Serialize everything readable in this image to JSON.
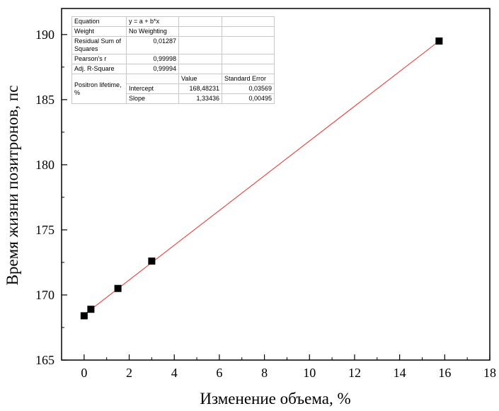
{
  "chart_data": {
    "type": "scatter",
    "xlabel": "Изменение объема, %",
    "ylabel": "Время жизни позитронов, пс",
    "xlim": [
      -1,
      18
    ],
    "ylim": [
      165,
      192
    ],
    "x_ticks": [
      "0",
      "2",
      "4",
      "6",
      "8",
      "10",
      "12",
      "14",
      "16",
      "18"
    ],
    "y_ticks": [
      "165",
      "170",
      "175",
      "180",
      "185",
      "190"
    ],
    "series": [
      {
        "x": [
          0,
          0.3,
          1.5,
          3.0,
          15.75
        ],
        "y": [
          168.4,
          168.9,
          170.5,
          172.6,
          189.5
        ],
        "marker": "square",
        "color": "#000000"
      }
    ],
    "fit_line": {
      "intercept": 168.48231,
      "slope": 1.33436,
      "x_range": [
        0,
        15.75
      ],
      "color": "#e0504a"
    },
    "grid": false
  },
  "stats_table": {
    "equation_label": "Equation",
    "equation_value": "y = a + b*x",
    "weight_label": "Weight",
    "weight_value": "No Weighting",
    "rss_label": "Residual Sum of Squares",
    "rss_value": "0,01287",
    "pearson_label": "Pearson's r",
    "pearson_value": "0,99998",
    "adjr2_label": "Adj. R-Square",
    "adjr2_value": "0,99994",
    "value_header": "Value",
    "stderr_header": "Standard Error",
    "group_label": "Positron lifetime, %",
    "intercept_label": "Intercept",
    "intercept_value": "168,48231",
    "intercept_error": "0,03569",
    "slope_label": "Slope",
    "slope_value": "1,33436",
    "slope_error": "0,00495"
  }
}
